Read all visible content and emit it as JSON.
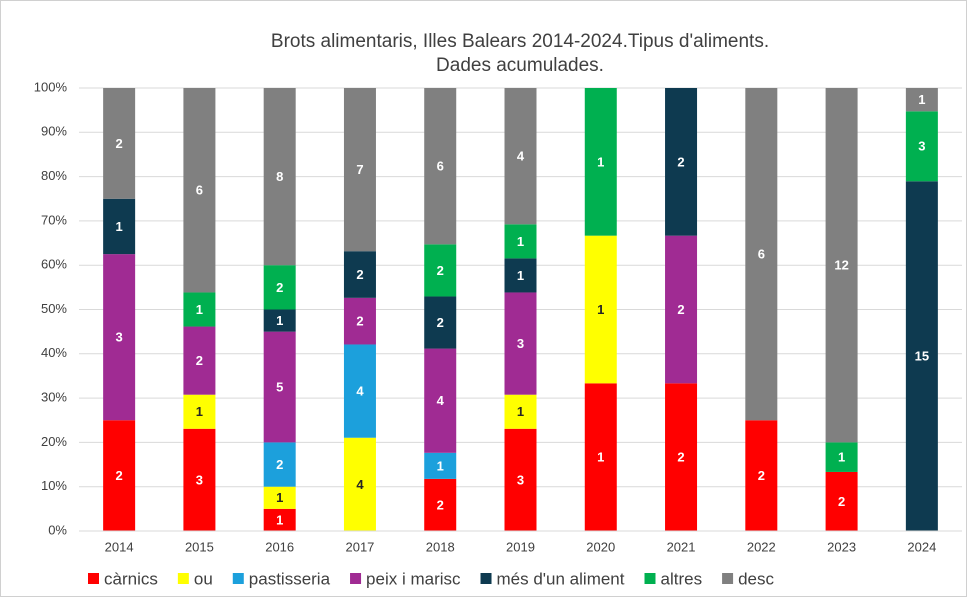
{
  "chart_data": {
    "type": "bar",
    "stacking": "percent",
    "title": [
      "Brots alimentaris, Illes Balears 2014-2024.Tipus d'aliments.",
      "Dades acumulades."
    ],
    "categories": [
      "2014",
      "2015",
      "2016",
      "2017",
      "2018",
      "2019",
      "2020",
      "2021",
      "2022",
      "2023",
      "2024"
    ],
    "series": [
      {
        "name": "càrnics",
        "color": "#ff0000",
        "values": [
          2,
          3,
          1,
          null,
          2,
          3,
          1,
          2,
          2,
          2,
          null
        ]
      },
      {
        "name": "ou",
        "color": "#ffff00",
        "values": [
          null,
          1,
          1,
          4,
          null,
          1,
          1,
          null,
          null,
          null,
          null
        ]
      },
      {
        "name": "pastisseria",
        "color": "#1ca0dc",
        "values": [
          null,
          null,
          2,
          4,
          1,
          null,
          null,
          null,
          null,
          null,
          null
        ]
      },
      {
        "name": "peix i marisc",
        "color": "#a02b93",
        "values": [
          3,
          2,
          5,
          2,
          4,
          3,
          null,
          2,
          null,
          null,
          null
        ]
      },
      {
        "name": "més d'un aliment",
        "color": "#0e3a50",
        "values": [
          1,
          null,
          1,
          2,
          2,
          1,
          null,
          2,
          null,
          null,
          15
        ]
      },
      {
        "name": "altres",
        "color": "#00b050",
        "values": [
          null,
          1,
          2,
          null,
          2,
          1,
          1,
          null,
          null,
          1,
          3
        ]
      },
      {
        "name": "desc",
        "color": "#808080",
        "values": [
          2,
          6,
          8,
          7,
          6,
          4,
          null,
          null,
          6,
          12,
          1
        ]
      }
    ],
    "ylim": [
      0,
      100
    ],
    "yticks": [
      {
        "value": 0,
        "label": "0%"
      },
      {
        "value": 10,
        "label": "10%"
      },
      {
        "value": 20,
        "label": "20%"
      },
      {
        "value": 30,
        "label": "30%"
      },
      {
        "value": 40,
        "label": "40%"
      },
      {
        "value": 50,
        "label": "50%"
      },
      {
        "value": 60,
        "label": "60%"
      },
      {
        "value": 70,
        "label": "70%"
      },
      {
        "value": 80,
        "label": "80%"
      },
      {
        "value": 90,
        "label": "90%"
      },
      {
        "value": 100,
        "label": "100%"
      }
    ],
    "grid": true,
    "legend": "bottom"
  }
}
